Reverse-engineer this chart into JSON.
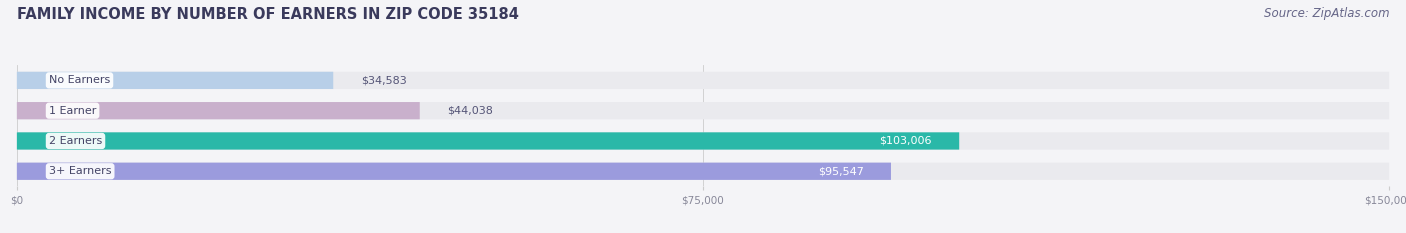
{
  "title": "FAMILY INCOME BY NUMBER OF EARNERS IN ZIP CODE 35184",
  "source": "Source: ZipAtlas.com",
  "categories": [
    "No Earners",
    "1 Earner",
    "2 Earners",
    "3+ Earners"
  ],
  "values": [
    34583,
    44038,
    103006,
    95547
  ],
  "bar_colors": [
    "#b8cfe8",
    "#c9b0cc",
    "#2ab8a8",
    "#9b9bdd"
  ],
  "bar_bg_color": "#eaeaee",
  "value_label_inside": [
    false,
    false,
    true,
    true
  ],
  "xlim": [
    0,
    150000
  ],
  "xticks": [
    0,
    75000,
    150000
  ],
  "xtick_labels": [
    "$0",
    "$75,000",
    "$150,000"
  ],
  "title_color": "#3a3a5c",
  "source_color": "#666688",
  "title_fontsize": 10.5,
  "source_fontsize": 8.5,
  "value_fontsize": 8,
  "category_fontsize": 8,
  "bar_height": 0.62,
  "background_color": "#f4f4f7",
  "category_label_color": "#444466"
}
